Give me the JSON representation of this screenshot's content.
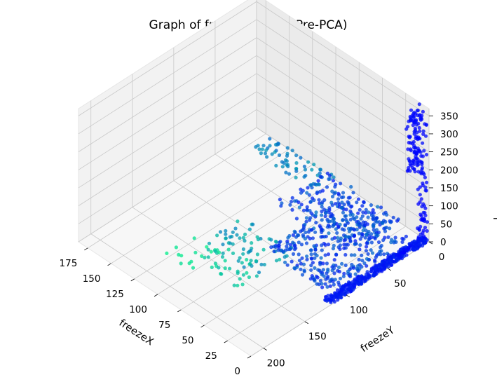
{
  "chart_data": {
    "type": "scatter",
    "projection": "3d",
    "title": "Graph of freeze indices (Pre-PCA)",
    "xlabel": "freezeX",
    "ylabel": "freezeY",
    "zlabel": "f",
    "xlim": [
      0,
      185
    ],
    "ylim": [
      0,
      215
    ],
    "zlim": [
      0,
      370
    ],
    "x_ticks": [
      0,
      25,
      50,
      75,
      100,
      125,
      150,
      175
    ],
    "y_ticks": [
      0,
      50,
      100,
      150,
      200
    ],
    "z_ticks": [
      0,
      50,
      100,
      150,
      200,
      250,
      300,
      350
    ],
    "grid": true,
    "colormap": "winter",
    "color_low": "#0000ff",
    "color_high": "#00ff80",
    "clusters": [
      {
        "x_range": [
          0,
          8
        ],
        "y_range": [
          0,
          120
        ],
        "z_range": [
          0,
          5
        ],
        "count": 400,
        "color_t": [
          0.05,
          0.15
        ]
      },
      {
        "x_range": [
          0,
          6
        ],
        "y_range": [
          0,
          8
        ],
        "z_range": [
          0,
          200
        ],
        "count": 50,
        "color_t": [
          0.0,
          0.05
        ]
      },
      {
        "x_range": [
          2,
          12
        ],
        "y_range": [
          0,
          15
        ],
        "z_range": [
          200,
          370
        ],
        "count": 120,
        "color_t": [
          0.0,
          0.05
        ]
      },
      {
        "x_range": [
          10,
          80
        ],
        "y_range": [
          10,
          110
        ],
        "z_range": [
          0,
          10
        ],
        "count": 350,
        "color_t": [
          0.1,
          0.4
        ]
      },
      {
        "x_range": [
          30,
          110
        ],
        "y_range": [
          0,
          60
        ],
        "z_range": [
          0,
          15
        ],
        "count": 180,
        "color_t": [
          0.1,
          0.45
        ]
      },
      {
        "x_range": [
          60,
          120
        ],
        "y_range": [
          90,
          140
        ],
        "z_range": [
          0,
          8
        ],
        "count": 60,
        "color_t": [
          0.5,
          0.75
        ]
      },
      {
        "x_range": [
          100,
          130
        ],
        "y_range": [
          140,
          175
        ],
        "z_range": [
          0,
          5
        ],
        "count": 15,
        "color_t": [
          0.85,
          0.95
        ]
      },
      {
        "x_range": [
          60,
          110
        ],
        "y_range": [
          130,
          160
        ],
        "z_range": [
          0,
          5
        ],
        "count": 30,
        "color_t": [
          0.7,
          0.85
        ]
      },
      {
        "x_range": [
          100,
          170
        ],
        "y_range": [
          0,
          25
        ],
        "z_range": [
          0,
          10
        ],
        "count": 60,
        "color_t": [
          0.4,
          0.6
        ]
      },
      {
        "x_range": [
          0,
          3
        ],
        "y_range": [
          20,
          35
        ],
        "z_range": [
          10,
          15
        ],
        "count": 10,
        "color_t": [
          0.0,
          0.05
        ]
      }
    ]
  }
}
